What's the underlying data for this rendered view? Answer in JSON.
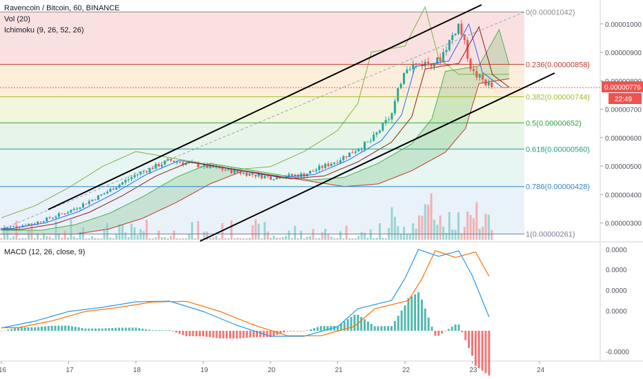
{
  "legend": {
    "title": "Ravencoin / Bitcoin, 60, BINANCE",
    "vol": "Vol (20)",
    "ichimoku": "Ichimoku (9, 26, 52, 26)",
    "macd": "MACD (12, 26, close, 9)"
  },
  "price_axis": {
    "ticks": [
      "0.00001000",
      "0.00000900",
      "0.00000800",
      "0.00000700",
      "0.00000600",
      "0.00000500",
      "0.00000400",
      "0.00000300"
    ],
    "current_price": "0.00000776",
    "countdown": "22:49"
  },
  "macd_axis": {
    "ticks": [
      "0.0000",
      "0.0000",
      "0.0000",
      "0.0000",
      "-0.0000"
    ]
  },
  "fib_labels": [
    {
      "text": "0(0.00001042)",
      "color": "#8a8a8a"
    },
    {
      "text": "0.236(0.00000858)",
      "color": "#c0392b"
    },
    {
      "text": "0.382(0.00000744)",
      "color": "#a5b82a"
    },
    {
      "text": "0.5(0.00000652)",
      "color": "#2f9e44"
    },
    {
      "text": "0.618(0.00000560)",
      "color": "#1f9e86"
    },
    {
      "text": "0.786(0.00000428)",
      "color": "#2f86c8"
    },
    {
      "text": "1(0.00000261)",
      "color": "#7a7aa0"
    }
  ],
  "time_axis": {
    "labels": [
      "16",
      "17",
      "18",
      "19",
      "20",
      "21",
      "22",
      "23",
      "24"
    ]
  },
  "colors": {
    "up": "#26a69a",
    "down": "#ef5350",
    "macd_line": "#2196f3",
    "signal_line": "#ff6d00",
    "channel": "#000000",
    "price_label_bg": "#ef5350",
    "countdown_bg": "#ef5350"
  },
  "chart_data": {
    "type": "candlestick",
    "symbol": "Ravencoin / Bitcoin",
    "interval": "60",
    "exchange": "BINANCE",
    "x_dates": [
      "16",
      "17",
      "18",
      "19",
      "20",
      "21",
      "22",
      "23",
      "24"
    ],
    "y_range": [
      2.6e-06,
      1.06e-05
    ],
    "price_close_path": [
      {
        "date": "16",
        "close": 2.8e-06
      },
      {
        "date": "16.5",
        "close": 3e-06
      },
      {
        "date": "17",
        "close": 3.4e-06
      },
      {
        "date": "17.5",
        "close": 4e-06
      },
      {
        "date": "18",
        "close": 4.7e-06
      },
      {
        "date": "18.5",
        "close": 5.2e-06
      },
      {
        "date": "19",
        "close": 5e-06
      },
      {
        "date": "19.5",
        "close": 4.8e-06
      },
      {
        "date": "20",
        "close": 4.6e-06
      },
      {
        "date": "20.5",
        "close": 4.7e-06
      },
      {
        "date": "21",
        "close": 5.2e-06
      },
      {
        "date": "21.5",
        "close": 5.9e-06
      },
      {
        "date": "21.8",
        "close": 6.8e-06
      },
      {
        "date": "22",
        "close": 8.5e-06
      },
      {
        "date": "22.5",
        "close": 8.7e-06
      },
      {
        "date": "22.8",
        "close": 1e-05
      },
      {
        "date": "23",
        "close": 8.3e-06
      },
      {
        "date": "23.3",
        "close": 7.76e-06
      }
    ],
    "fibonacci": [
      {
        "level": 0,
        "price": 1.042e-05
      },
      {
        "level": 0.236,
        "price": 8.58e-06
      },
      {
        "level": 0.382,
        "price": 7.44e-06
      },
      {
        "level": 0.5,
        "price": 6.52e-06
      },
      {
        "level": 0.618,
        "price": 5.6e-06
      },
      {
        "level": 0.786,
        "price": 4.28e-06
      },
      {
        "level": 1,
        "price": 2.61e-06
      }
    ],
    "last_price": 7.76e-06,
    "indicators": [
      "Vol (20)",
      "Ichimoku (9, 26, 52, 26)",
      "MACD (12, 26, close, 9)"
    ]
  }
}
